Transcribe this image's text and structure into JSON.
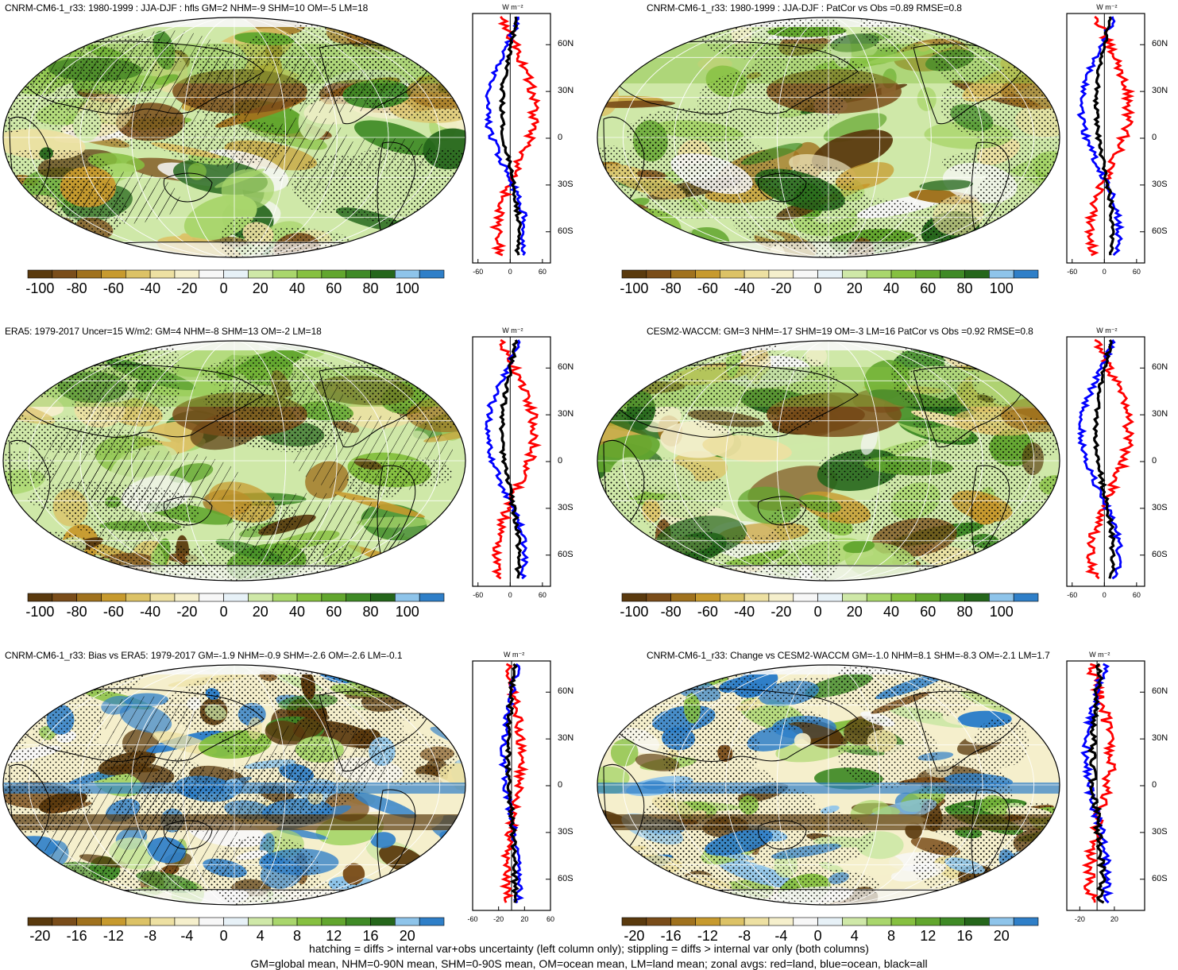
{
  "panels": [
    {
      "title": "CNRM-CM6-1_r33: 1980-1999 : JJA-DJF : hfls GM=2 NHM=-9 SHM=10 OM=-5 LM=18",
      "cbar_ticks": [
        "-100",
        "-80",
        "-60",
        "-40",
        "-20",
        "0",
        "20",
        "40",
        "60",
        "80",
        "100"
      ],
      "zonal_xticks": [
        "-60",
        "0",
        "60"
      ],
      "zonal_xvalues": [
        -60,
        0,
        60
      ],
      "zonal_xlim": [
        -70,
        75
      ],
      "hatched": true,
      "kind": "mean"
    },
    {
      "title": "CNRM-CM6-1_r33: 1980-1999 : JJA-DJF : PatCor vs Obs =0.89 RMSE=0.8",
      "cbar_ticks": [
        "-100",
        "-80",
        "-60",
        "-40",
        "-20",
        "0",
        "20",
        "40",
        "60",
        "80",
        "100"
      ],
      "zonal_xticks": [
        "-60",
        "0",
        "60"
      ],
      "zonal_xvalues": [
        -60,
        0,
        60
      ],
      "zonal_xlim": [
        -70,
        75
      ],
      "hatched": false,
      "kind": "mean"
    },
    {
      "title": "ERA5: 1979-2017 Uncer=15 W/m2: GM=4 NHM=-8 SHM=13 OM=-2 LM=18",
      "cbar_ticks": [
        "-100",
        "-80",
        "-60",
        "-40",
        "-20",
        "0",
        "20",
        "40",
        "60",
        "80",
        "100"
      ],
      "zonal_xticks": [
        "-60",
        "0",
        "60"
      ],
      "zonal_xvalues": [
        -60,
        0,
        60
      ],
      "zonal_xlim": [
        -70,
        75
      ],
      "hatched": true,
      "kind": "mean"
    },
    {
      "title": "CESM2-WACCM: GM=3 NHM=-17 SHM=19 OM=-3 LM=16 PatCor vs Obs =0.92 RMSE=0.8",
      "cbar_ticks": [
        "-100",
        "-80",
        "-60",
        "-40",
        "-20",
        "0",
        "20",
        "40",
        "60",
        "80",
        "100"
      ],
      "zonal_xticks": [
        "-60",
        "0",
        "60"
      ],
      "zonal_xvalues": [
        -60,
        0,
        60
      ],
      "zonal_xlim": [
        -70,
        75
      ],
      "hatched": false,
      "kind": "mean"
    },
    {
      "title": "CNRM-CM6-1_r33: Bias vs ERA5: 1979-2017 GM=-1.9 NHM=-0.9 SHM=-2.6 OM=-2.6 LM=-0.1",
      "cbar_ticks": [
        "-20",
        "-16",
        "-12",
        "-8",
        "-4",
        "0",
        "4",
        "8",
        "12",
        "16",
        "20"
      ],
      "zonal_xticks": [
        "-60",
        "-20",
        "20",
        "60"
      ],
      "zonal_xvalues": [
        -60,
        -20,
        20,
        60
      ],
      "zonal_xlim": [
        -60,
        60
      ],
      "hatched": true,
      "kind": "diff"
    },
    {
      "title": "CNRM-CM6-1_r33: Change vs CESM2-WACCM GM=-1.0 NHM=8.1 SHM=-8.3 OM=-2.1 LM=1.7",
      "cbar_ticks": [
        "-20",
        "-16",
        "-12",
        "-8",
        "-4",
        "0",
        "4",
        "8",
        "12",
        "16",
        "20"
      ],
      "zonal_xticks": [
        "-20",
        "20"
      ],
      "zonal_xvalues": [
        -20,
        20
      ],
      "zonal_xlim": [
        -35,
        55
      ],
      "hatched": false,
      "kind": "diff"
    }
  ],
  "zonal_unit": "W m⁻²",
  "lat_labels": [
    "60N",
    "30N",
    "0",
    "30S",
    "60S"
  ],
  "lat_values": [
    60,
    30,
    0,
    -30,
    -60
  ],
  "cbar_colors": [
    "#5a3a0e",
    "#7a4d1a",
    "#a0721e",
    "#c79a2e",
    "#dcc266",
    "#ede0a2",
    "#f5efcc",
    "#f7f7f7",
    "#e7f1f7",
    "#cfe8a8",
    "#a9d66c",
    "#86c040",
    "#62a62e",
    "#3f8a26",
    "#25661b",
    "#8ec4ea",
    "#2f7fc8"
  ],
  "legend_colors": {
    "land": "#ff0000",
    "ocean": "#0000ff",
    "all": "#000000"
  },
  "footer": [
    "hatching = diffs > internal var+obs uncertainty (left column only); stippling = diffs > internal var only (both columns)",
    "GM=global mean, NHM=0-90N mean, SHM=0-90S mean, OM=ocean mean, LM=land mean; zonal avgs: red=land, blue=ocean, black=all"
  ]
}
